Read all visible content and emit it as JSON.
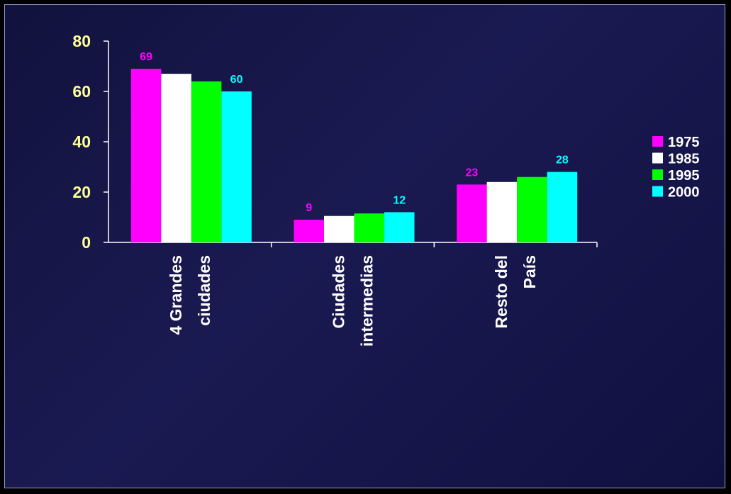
{
  "colors": {
    "text": "#ffff99",
    "axis": "#ffffff"
  },
  "chart_data": {
    "type": "bar",
    "title": "",
    "xlabel": "",
    "ylabel": "",
    "categories": [
      [
        "4 Grandes",
        "ciudades"
      ],
      [
        "Ciudades",
        "intermedias"
      ],
      [
        "Resto del",
        "País"
      ]
    ],
    "series": [
      {
        "name": "1975",
        "color": "#ff00ff",
        "values": [
          69,
          9,
          23
        ],
        "labels": [
          "69",
          "9",
          "23"
        ]
      },
      {
        "name": "1985",
        "color": "#ffffff",
        "values": [
          67,
          10.5,
          24
        ],
        "labels": [
          "",
          "",
          ""
        ]
      },
      {
        "name": "1995",
        "color": "#00ff00",
        "values": [
          64,
          11.5,
          26
        ],
        "labels": [
          "",
          "",
          ""
        ]
      },
      {
        "name": "2000",
        "color": "#00ffff",
        "values": [
          60,
          12,
          28
        ],
        "labels": [
          "60",
          "12",
          "28"
        ]
      }
    ],
    "ylim": [
      0,
      80
    ],
    "yticks": [
      0,
      20,
      40,
      60,
      80
    ],
    "grid": false,
    "legend_position": "right"
  }
}
